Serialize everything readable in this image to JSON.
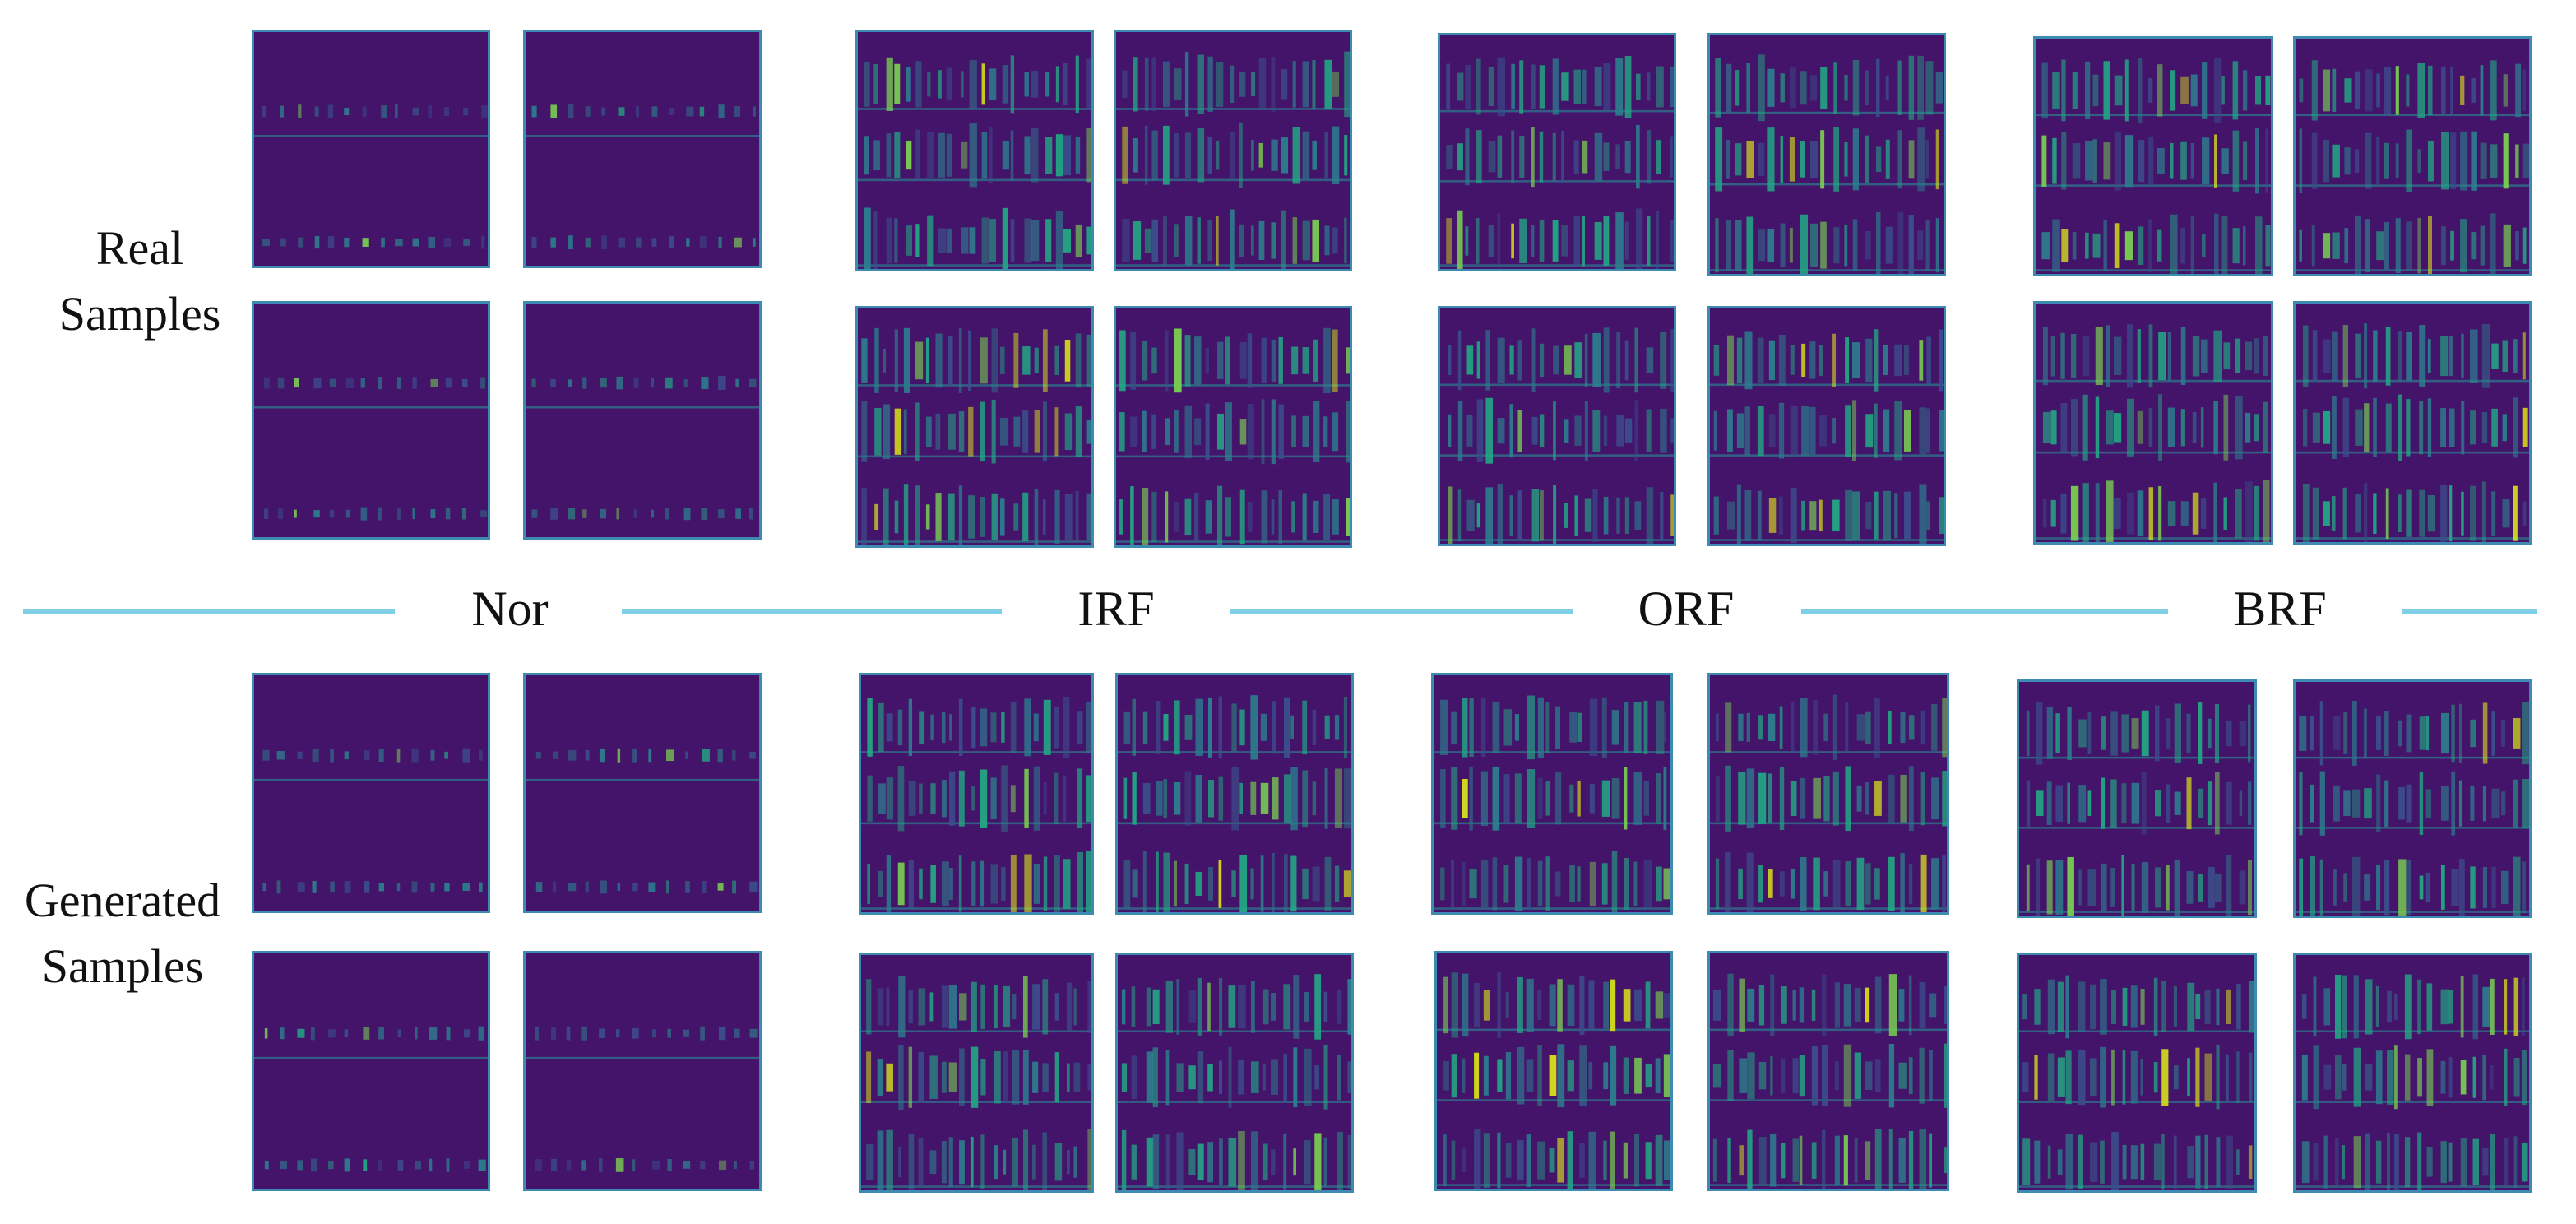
{
  "rows": {
    "real": {
      "line1": "Real",
      "line2": "Samples"
    },
    "generated": {
      "line1": "Generated",
      "line2": "Samples"
    }
  },
  "classes": [
    {
      "id": "nor",
      "label": "Nor"
    },
    {
      "id": "irf",
      "label": "IRF"
    },
    {
      "id": "orf",
      "label": "ORF"
    },
    {
      "id": "brf",
      "label": "BRF"
    }
  ],
  "colors": {
    "divider": "#7fcfe6",
    "spectrogram_background": "#44136a",
    "colormap": [
      "#44136a",
      "#3b4f8c",
      "#2c7f8e",
      "#22a884",
      "#7ad151",
      "#d8e219"
    ]
  },
  "panels_per_group": 4,
  "panel_type": "spectrogram"
}
